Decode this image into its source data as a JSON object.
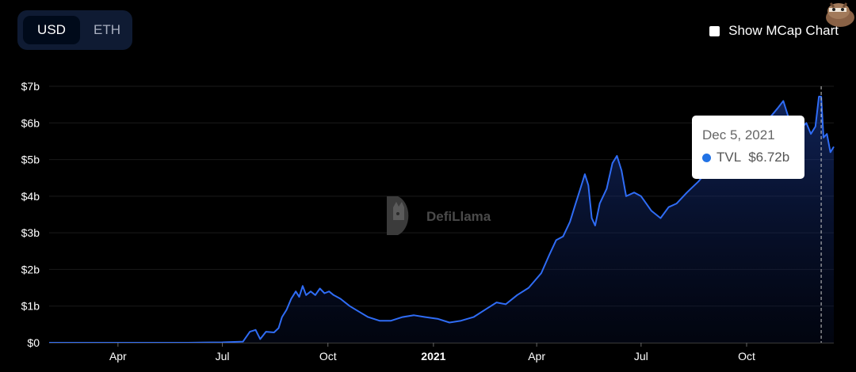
{
  "currency_toggle": {
    "options": [
      "USD",
      "ETH"
    ],
    "selected": "USD"
  },
  "mcap_toggle": {
    "label": "Show MCap Chart",
    "checked": false
  },
  "watermark": {
    "text": "DefiLlama"
  },
  "tooltip": {
    "date": "Dec 5, 2021",
    "series": "TVL",
    "value": "$6.72b"
  },
  "colors": {
    "line": "#2f6cf5",
    "background": "#000000",
    "tooltip_bg": "#ffffff",
    "toggle_bg": "#0f1b33"
  },
  "icons": {
    "mascot": "llama-mascot-icon",
    "watermark_logo": "llama-logo-icon"
  },
  "chart_data": {
    "type": "area",
    "title": "",
    "xlabel": "",
    "ylabel": "",
    "y_unit": "billion USD",
    "ylim": [
      0,
      7
    ],
    "yticks": [
      {
        "value": 0,
        "label": "$0"
      },
      {
        "value": 1,
        "label": "$1b"
      },
      {
        "value": 2,
        "label": "$2b"
      },
      {
        "value": 3,
        "label": "$3b"
      },
      {
        "value": 4,
        "label": "$4b"
      },
      {
        "value": 5,
        "label": "$5b"
      },
      {
        "value": 6,
        "label": "$6b"
      },
      {
        "value": 7,
        "label": "$7b"
      }
    ],
    "xlim": [
      "2020-02-01",
      "2021-12-16"
    ],
    "xticks": [
      {
        "date": "2020-04-01",
        "label": "Apr",
        "bold": false
      },
      {
        "date": "2020-07-01",
        "label": "Jul",
        "bold": false
      },
      {
        "date": "2020-10-01",
        "label": "Oct",
        "bold": false
      },
      {
        "date": "2021-01-01",
        "label": "2021",
        "bold": true
      },
      {
        "date": "2021-04-01",
        "label": "Apr",
        "bold": false
      },
      {
        "date": "2021-07-01",
        "label": "Jul",
        "bold": false
      },
      {
        "date": "2021-10-01",
        "label": "Oct",
        "bold": false
      }
    ],
    "grid": true,
    "legend": "none",
    "highlight_date": "2021-12-05",
    "series": [
      {
        "name": "TVL",
        "points": [
          [
            "2020-02-01",
            0.0
          ],
          [
            "2020-04-01",
            0.0
          ],
          [
            "2020-06-01",
            0.0
          ],
          [
            "2020-07-01",
            0.01
          ],
          [
            "2020-07-19",
            0.03
          ],
          [
            "2020-07-25",
            0.3
          ],
          [
            "2020-07-30",
            0.35
          ],
          [
            "2020-08-03",
            0.1
          ],
          [
            "2020-08-08",
            0.3
          ],
          [
            "2020-08-15",
            0.28
          ],
          [
            "2020-08-19",
            0.4
          ],
          [
            "2020-08-22",
            0.7
          ],
          [
            "2020-08-26",
            0.9
          ],
          [
            "2020-08-30",
            1.2
          ],
          [
            "2020-09-03",
            1.4
          ],
          [
            "2020-09-06",
            1.25
          ],
          [
            "2020-09-09",
            1.55
          ],
          [
            "2020-09-12",
            1.3
          ],
          [
            "2020-09-16",
            1.4
          ],
          [
            "2020-09-20",
            1.3
          ],
          [
            "2020-09-24",
            1.48
          ],
          [
            "2020-09-28",
            1.35
          ],
          [
            "2020-10-02",
            1.4
          ],
          [
            "2020-10-06",
            1.3
          ],
          [
            "2020-10-12",
            1.2
          ],
          [
            "2020-10-20",
            1.0
          ],
          [
            "2020-10-28",
            0.85
          ],
          [
            "2020-11-05",
            0.7
          ],
          [
            "2020-11-15",
            0.6
          ],
          [
            "2020-11-25",
            0.6
          ],
          [
            "2020-12-05",
            0.7
          ],
          [
            "2020-12-15",
            0.75
          ],
          [
            "2020-12-25",
            0.7
          ],
          [
            "2021-01-05",
            0.65
          ],
          [
            "2021-01-15",
            0.55
          ],
          [
            "2021-01-25",
            0.6
          ],
          [
            "2021-02-05",
            0.7
          ],
          [
            "2021-02-15",
            0.9
          ],
          [
            "2021-02-25",
            1.1
          ],
          [
            "2021-03-05",
            1.05
          ],
          [
            "2021-03-15",
            1.3
          ],
          [
            "2021-03-25",
            1.5
          ],
          [
            "2021-04-05",
            1.9
          ],
          [
            "2021-04-12",
            2.4
          ],
          [
            "2021-04-18",
            2.8
          ],
          [
            "2021-04-24",
            2.9
          ],
          [
            "2021-04-30",
            3.3
          ],
          [
            "2021-05-05",
            3.8
          ],
          [
            "2021-05-10",
            4.3
          ],
          [
            "2021-05-13",
            4.6
          ],
          [
            "2021-05-16",
            4.3
          ],
          [
            "2021-05-19",
            3.4
          ],
          [
            "2021-05-22",
            3.2
          ],
          [
            "2021-05-26",
            3.8
          ],
          [
            "2021-06-01",
            4.2
          ],
          [
            "2021-06-06",
            4.9
          ],
          [
            "2021-06-10",
            5.1
          ],
          [
            "2021-06-14",
            4.7
          ],
          [
            "2021-06-18",
            4.0
          ],
          [
            "2021-06-25",
            4.1
          ],
          [
            "2021-07-01",
            4.0
          ],
          [
            "2021-07-10",
            3.6
          ],
          [
            "2021-07-18",
            3.4
          ],
          [
            "2021-07-25",
            3.7
          ],
          [
            "2021-08-01",
            3.8
          ],
          [
            "2021-08-10",
            4.1
          ],
          [
            "2021-08-20",
            4.4
          ],
          [
            "2021-08-28",
            4.7
          ],
          [
            "2021-09-05",
            5.1
          ],
          [
            "2021-09-12",
            5.4
          ],
          [
            "2021-09-20",
            5.3
          ],
          [
            "2021-10-01",
            5.6
          ],
          [
            "2021-10-10",
            5.8
          ],
          [
            "2021-10-20",
            6.1
          ],
          [
            "2021-10-28",
            6.4
          ],
          [
            "2021-11-02",
            6.6
          ],
          [
            "2021-11-06",
            6.2
          ],
          [
            "2021-11-10",
            6.0
          ],
          [
            "2021-11-16",
            5.8
          ],
          [
            "2021-11-22",
            6.0
          ],
          [
            "2021-11-26",
            5.7
          ],
          [
            "2021-11-30",
            5.9
          ],
          [
            "2021-12-03",
            6.72
          ],
          [
            "2021-12-05",
            6.72
          ],
          [
            "2021-12-07",
            5.6
          ],
          [
            "2021-12-10",
            5.7
          ],
          [
            "2021-12-13",
            5.2
          ],
          [
            "2021-12-16",
            5.35
          ]
        ]
      }
    ]
  }
}
